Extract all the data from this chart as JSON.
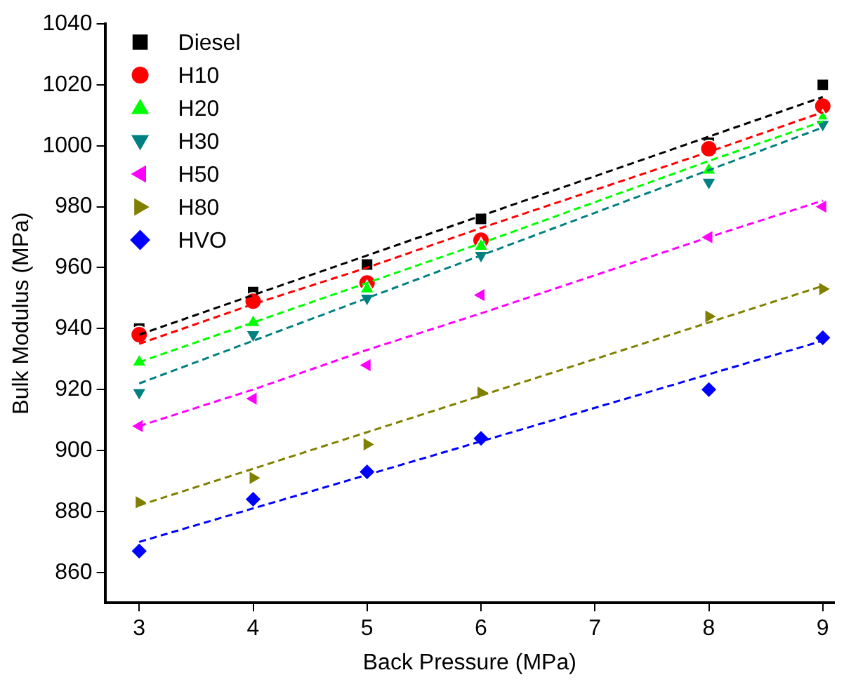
{
  "chart_data": {
    "type": "scatter",
    "xlabel": "Back Pressure (MPa)",
    "ylabel": "Bulk Modulus (MPa)",
    "x": [
      3,
      4,
      5,
      6,
      8,
      9
    ],
    "xlim": [
      2.7,
      9.1
    ],
    "xticks": [
      3,
      4,
      5,
      6,
      7,
      8,
      9
    ],
    "ylim": [
      850,
      1040
    ],
    "yticks": [
      860,
      880,
      900,
      920,
      940,
      960,
      980,
      1000,
      1020,
      1040
    ],
    "grid": false,
    "legend": "top left",
    "series": [
      {
        "name": "Diesel",
        "color": "#000000",
        "marker": "square",
        "values": [
          940,
          952,
          961,
          976,
          1001,
          1020
        ]
      },
      {
        "name": "H10",
        "color": "#ff0000",
        "marker": "circle",
        "values": [
          938,
          949,
          955,
          969,
          999,
          1013
        ]
      },
      {
        "name": "H20",
        "color": "#00ff00",
        "marker": "triangle",
        "values": [
          929,
          942,
          953,
          967,
          992,
          1009
        ]
      },
      {
        "name": "H30",
        "color": "#008080",
        "marker": "triangle-down",
        "values": [
          919,
          938,
          950,
          964,
          988,
          1007
        ]
      },
      {
        "name": "H50",
        "color": "#ff00ff",
        "marker": "triangle-left",
        "values": [
          908,
          917,
          928,
          951,
          970,
          980
        ]
      },
      {
        "name": "H80",
        "color": "#808000",
        "marker": "triangle-right",
        "values": [
          883,
          891,
          902,
          919,
          944,
          953
        ]
      },
      {
        "name": "HVO",
        "color": "#0000ff",
        "marker": "diamond",
        "values": [
          867,
          884,
          893,
          904,
          920,
          937
        ]
      },
      {
        "type": "line",
        "color": "#000000",
        "line_style": "dashed",
        "values": [
          938,
          951,
          964,
          977,
          1003,
          1016
        ]
      },
      {
        "type": "line",
        "color": "#ff0000",
        "line_style": "dashed",
        "values": [
          935,
          948,
          960,
          973,
          998,
          1011
        ]
      },
      {
        "type": "line",
        "color": "#00ff00",
        "line_style": "dashed",
        "values": [
          929,
          942,
          955,
          968,
          995,
          1008
        ]
      },
      {
        "type": "line",
        "color": "#008080",
        "line_style": "dashed",
        "values": [
          922,
          936,
          950,
          964,
          992,
          1006
        ]
      },
      {
        "type": "line",
        "color": "#ff00ff",
        "line_style": "dashed",
        "values": [
          908,
          920,
          933,
          945,
          970,
          982
        ]
      },
      {
        "type": "line",
        "color": "#808000",
        "line_style": "dashed",
        "values": [
          882,
          894,
          906,
          918,
          942,
          954
        ]
      },
      {
        "type": "line",
        "color": "#0000ff",
        "line_style": "dashed",
        "values": [
          870,
          881,
          892,
          903,
          925,
          936
        ]
      }
    ]
  }
}
